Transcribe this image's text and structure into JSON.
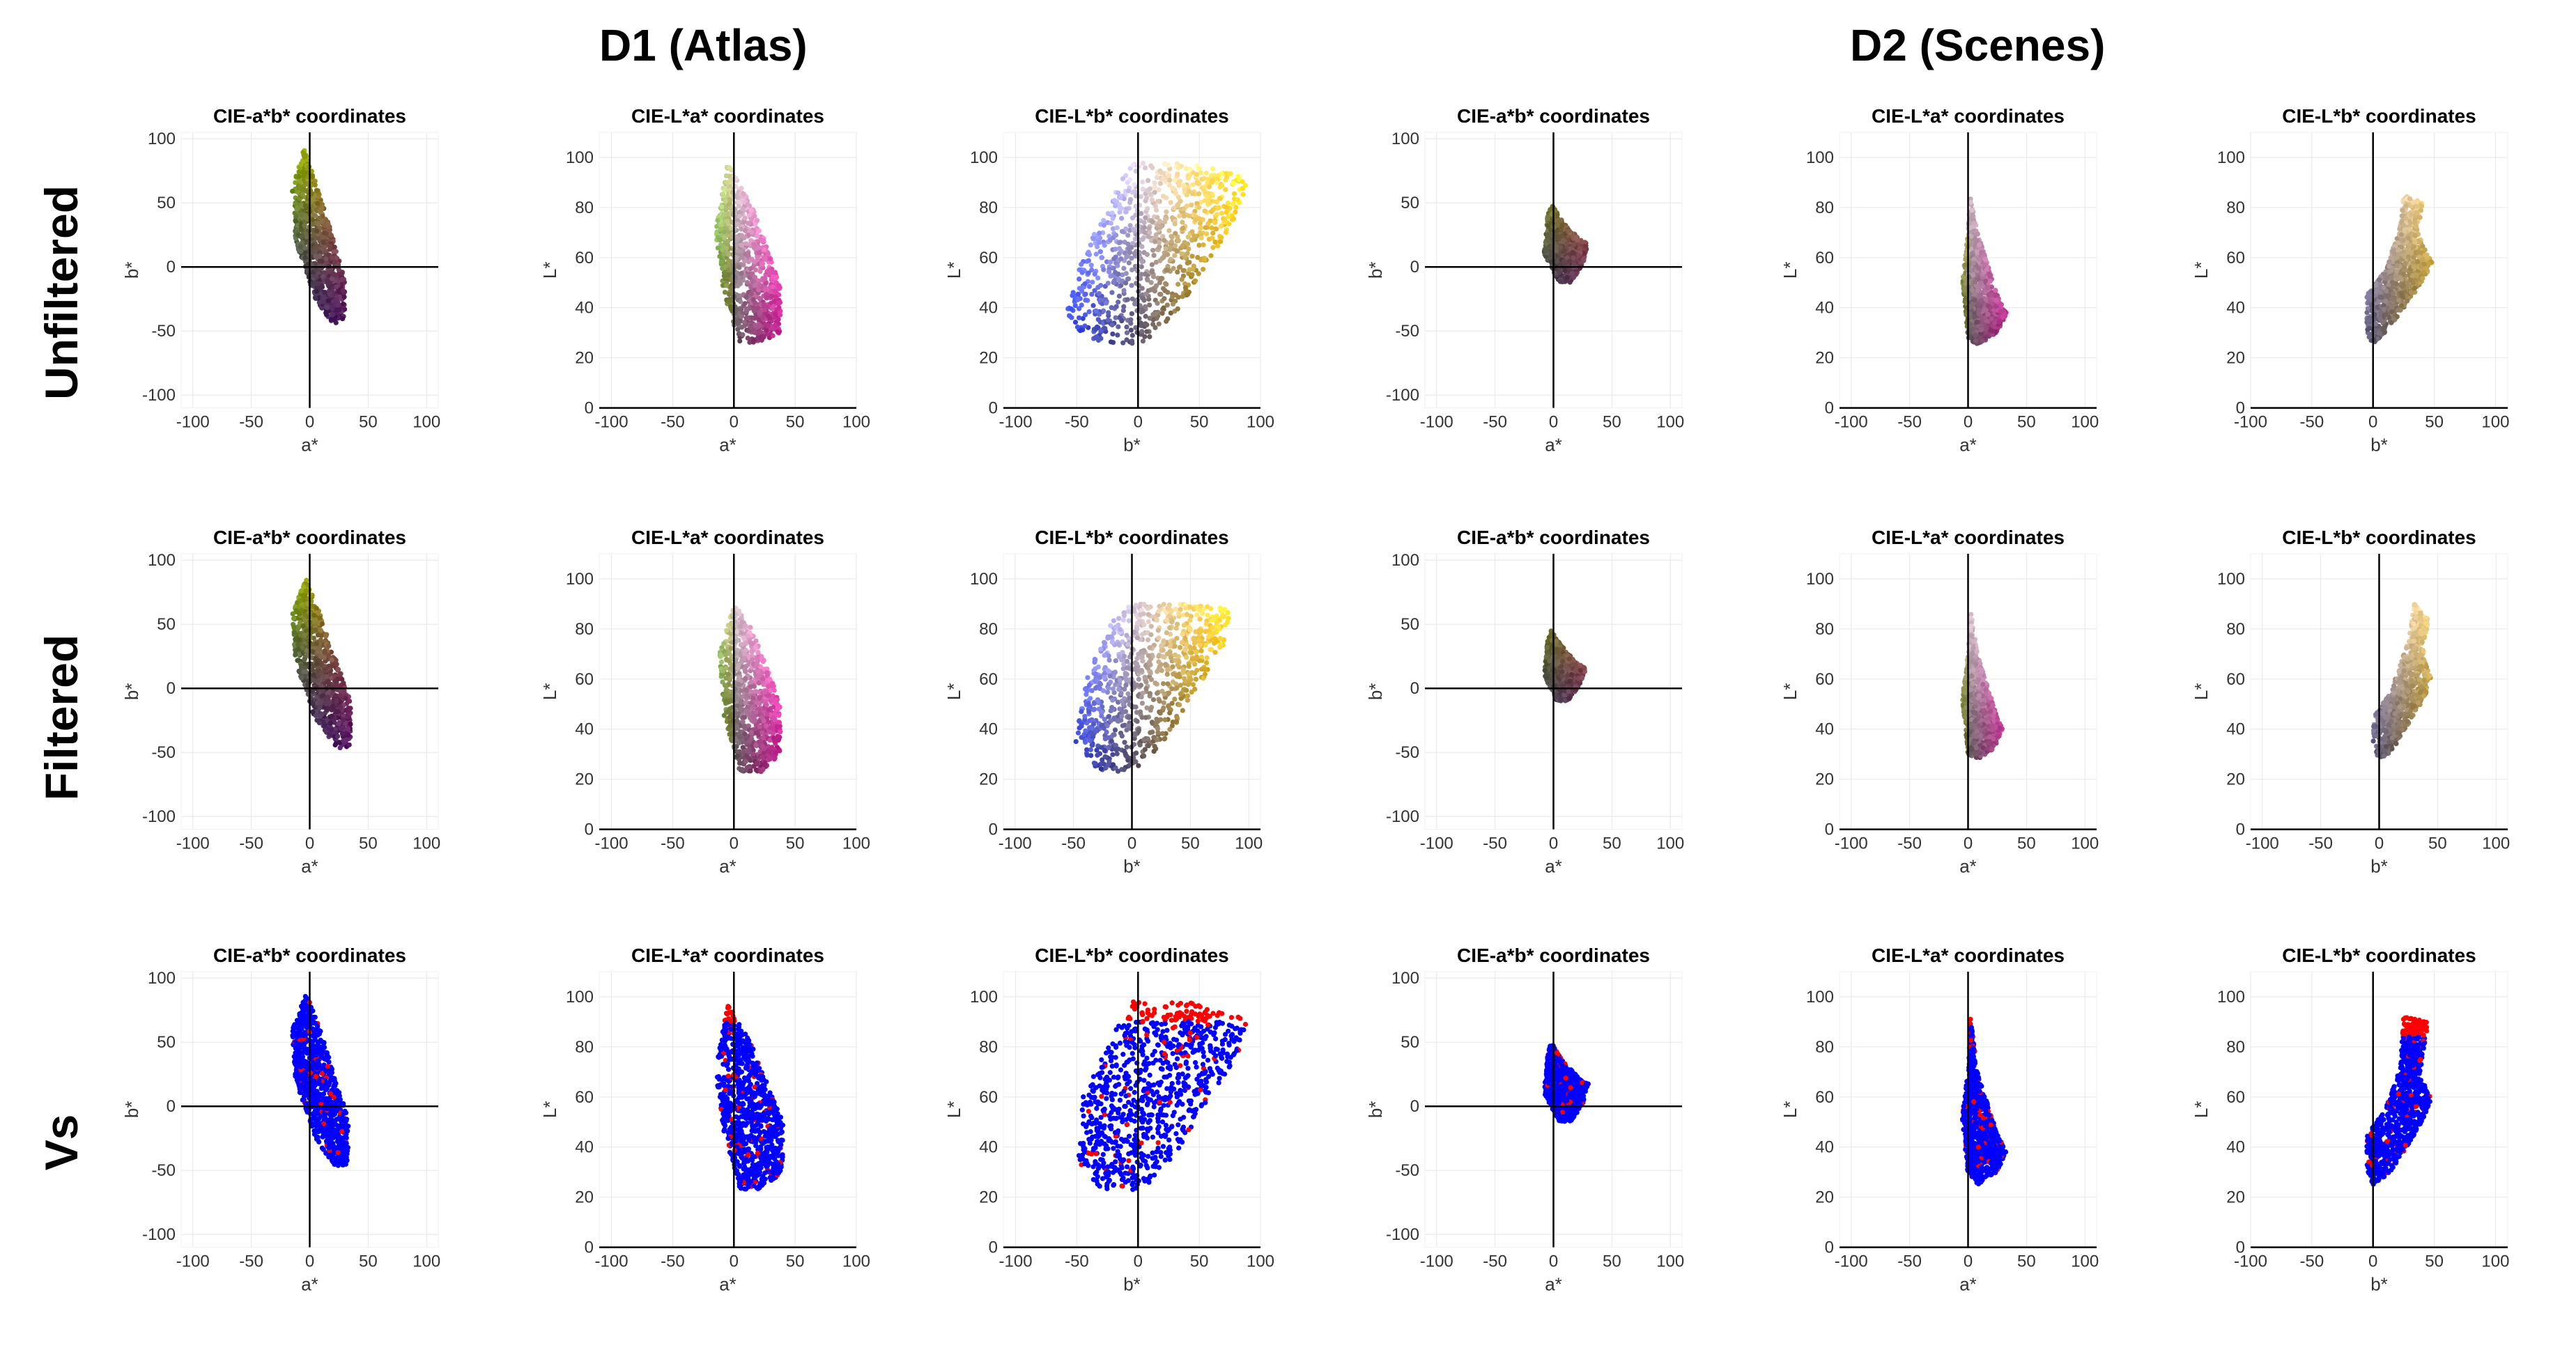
{
  "figure": {
    "group_titles": [
      "D1 (Atlas)",
      "D2 (Scenes)"
    ],
    "row_labels": [
      "Unfiltered",
      "Filtered",
      "Vs"
    ]
  },
  "colors": {
    "filtered": "#0000ff",
    "unfiltered": "#ff0000",
    "axis": "#000000",
    "grid": "#e6e6e6"
  },
  "chart_data": [
    {
      "dataset": "D1 (Atlas)",
      "row": "Unfiltered",
      "type": "scatter",
      "title": "CIE-a*b* coordinates",
      "xlabel": "a*",
      "ylabel": "b*",
      "xlim": [
        -110,
        110
      ],
      "ylim": [
        -110,
        105
      ],
      "xticks": [
        -100,
        -50,
        0,
        50,
        100
      ],
      "yticks": [
        -100,
        -50,
        0,
        50,
        100
      ],
      "region": [
        [
          -5,
          92
        ],
        [
          8,
          60
        ],
        [
          30,
          -10
        ],
        [
          30,
          -40
        ],
        [
          20,
          -45
        ],
        [
          5,
          -25
        ],
        [
          -12,
          20
        ],
        [
          -15,
          60
        ]
      ],
      "palette": "ab"
    },
    {
      "dataset": "D1 (Atlas)",
      "row": "Unfiltered",
      "type": "scatter",
      "title": "CIE-L*a* coordinates",
      "xlabel": "a*",
      "ylabel": "L*",
      "xlim": [
        -110,
        100
      ],
      "ylim": [
        0,
        110
      ],
      "xticks": [
        -100,
        -50,
        0,
        50,
        100
      ],
      "yticks": [
        0,
        20,
        40,
        60,
        80,
        100
      ],
      "region": [
        [
          -5,
          98
        ],
        [
          15,
          80
        ],
        [
          38,
          50
        ],
        [
          38,
          30
        ],
        [
          22,
          26
        ],
        [
          5,
          26
        ],
        [
          -8,
          45
        ],
        [
          -15,
          70
        ]
      ],
      "palette": "La"
    },
    {
      "dataset": "D1 (Atlas)",
      "row": "Unfiltered",
      "type": "scatter",
      "title": "CIE-L*b* coordinates",
      "xlabel": "b*",
      "ylabel": "L*",
      "xlim": [
        -110,
        100
      ],
      "ylim": [
        0,
        110
      ],
      "xticks": [
        -100,
        -50,
        0,
        50,
        100
      ],
      "yticks": [
        0,
        20,
        40,
        60,
        80,
        100
      ],
      "region": [
        [
          -5,
          98
        ],
        [
          40,
          98
        ],
        [
          90,
          92
        ],
        [
          82,
          78
        ],
        [
          35,
          40
        ],
        [
          5,
          26
        ],
        [
          -30,
          25
        ],
        [
          -60,
          35
        ],
        [
          -45,
          60
        ],
        [
          -20,
          85
        ]
      ],
      "palette": "Lb"
    },
    {
      "dataset": "D2 (Scenes)",
      "row": "Unfiltered",
      "type": "scatter",
      "title": "CIE-a*b* coordinates",
      "xlabel": "a*",
      "ylabel": "b*",
      "xlim": [
        -110,
        110
      ],
      "ylim": [
        -110,
        105
      ],
      "xticks": [
        -100,
        -50,
        0,
        50,
        100
      ],
      "yticks": [
        -100,
        -50,
        0,
        50,
        100
      ],
      "region": [
        [
          -2,
          50
        ],
        [
          8,
          35
        ],
        [
          22,
          22
        ],
        [
          30,
          18
        ],
        [
          25,
          2
        ],
        [
          15,
          -12
        ],
        [
          5,
          -12
        ],
        [
          -8,
          10
        ],
        [
          -5,
          40
        ]
      ],
      "palette": "ab"
    },
    {
      "dataset": "D2 (Scenes)",
      "row": "Unfiltered",
      "type": "scatter",
      "title": "CIE-L*a* coordinates",
      "xlabel": "a*",
      "ylabel": "L*",
      "xlim": [
        -110,
        110
      ],
      "ylim": [
        0,
        110
      ],
      "xticks": [
        -100,
        -50,
        0,
        50,
        100
      ],
      "yticks": [
        0,
        20,
        40,
        60,
        80,
        100
      ],
      "region": [
        [
          2,
          85
        ],
        [
          8,
          70
        ],
        [
          25,
          45
        ],
        [
          33,
          38
        ],
        [
          25,
          30
        ],
        [
          8,
          25
        ],
        [
          0,
          28
        ],
        [
          -5,
          52
        ],
        [
          0,
          70
        ]
      ],
      "palette": "La"
    },
    {
      "dataset": "D2 (Scenes)",
      "row": "Unfiltered",
      "type": "scatter",
      "title": "CIE-L*b* coordinates",
      "xlabel": "b*",
      "ylabel": "L*",
      "xlim": [
        -100,
        110
      ],
      "ylim": [
        0,
        110
      ],
      "xticks": [
        -100,
        -50,
        0,
        50,
        100
      ],
      "yticks": [
        0,
        20,
        40,
        60,
        80,
        100
      ],
      "region": [
        [
          25,
          85
        ],
        [
          40,
          82
        ],
        [
          38,
          68
        ],
        [
          48,
          58
        ],
        [
          40,
          50
        ],
        [
          15,
          33
        ],
        [
          0,
          25
        ],
        [
          -5,
          30
        ],
        [
          -5,
          45
        ],
        [
          10,
          55
        ],
        [
          22,
          72
        ]
      ],
      "palette": "Lb"
    },
    {
      "dataset": "D1 (Atlas)",
      "row": "Filtered",
      "type": "scatter",
      "title": "CIE-a*b* coordinates",
      "xlabel": "a*",
      "ylabel": "b*",
      "xlim": [
        -110,
        110
      ],
      "ylim": [
        -110,
        105
      ],
      "xticks": [
        -100,
        -50,
        0,
        50,
        100
      ],
      "yticks": [
        -100,
        -50,
        0,
        50,
        100
      ],
      "region": [
        [
          -3,
          85
        ],
        [
          8,
          60
        ],
        [
          35,
          -10
        ],
        [
          35,
          -45
        ],
        [
          25,
          -48
        ],
        [
          5,
          -25
        ],
        [
          -12,
          20
        ],
        [
          -15,
          60
        ]
      ],
      "palette": "ab"
    },
    {
      "dataset": "D1 (Atlas)",
      "row": "Filtered",
      "type": "scatter",
      "title": "CIE-L*a* coordinates",
      "xlabel": "a*",
      "ylabel": "L*",
      "xlim": [
        -110,
        100
      ],
      "ylim": [
        0,
        110
      ],
      "xticks": [
        -100,
        -50,
        0,
        50,
        100
      ],
      "yticks": [
        0,
        20,
        40,
        60,
        80,
        100
      ],
      "region": [
        [
          0,
          90
        ],
        [
          15,
          80
        ],
        [
          38,
          50
        ],
        [
          38,
          30
        ],
        [
          22,
          23
        ],
        [
          5,
          23
        ],
        [
          -8,
          45
        ],
        [
          -12,
          70
        ]
      ],
      "palette": "La"
    },
    {
      "dataset": "D1 (Atlas)",
      "row": "Filtered",
      "type": "scatter",
      "title": "CIE-L*b* coordinates",
      "xlabel": "b*",
      "ylabel": "L*",
      "xlim": [
        -110,
        110
      ],
      "ylim": [
        0,
        110
      ],
      "xticks": [
        -100,
        -50,
        0,
        50,
        100
      ],
      "yticks": [
        0,
        20,
        40,
        60,
        80,
        100
      ],
      "region": [
        [
          0,
          90
        ],
        [
          40,
          90
        ],
        [
          85,
          88
        ],
        [
          80,
          75
        ],
        [
          35,
          40
        ],
        [
          5,
          23
        ],
        [
          -30,
          23
        ],
        [
          -48,
          35
        ],
        [
          -40,
          60
        ],
        [
          -15,
          85
        ]
      ],
      "palette": "Lb"
    },
    {
      "dataset": "D2 (Scenes)",
      "row": "Filtered",
      "type": "scatter",
      "title": "CIE-a*b* coordinates",
      "xlabel": "a*",
      "ylabel": "b*",
      "xlim": [
        -110,
        110
      ],
      "ylim": [
        -110,
        105
      ],
      "xticks": [
        -100,
        -50,
        0,
        50,
        100
      ],
      "yticks": [
        -100,
        -50,
        0,
        50,
        100
      ],
      "region": [
        [
          -2,
          45
        ],
        [
          8,
          32
        ],
        [
          20,
          20
        ],
        [
          28,
          15
        ],
        [
          22,
          2
        ],
        [
          12,
          -10
        ],
        [
          3,
          -10
        ],
        [
          -8,
          10
        ],
        [
          -5,
          38
        ]
      ],
      "palette": "ab"
    },
    {
      "dataset": "D2 (Scenes)",
      "row": "Filtered",
      "type": "scatter",
      "title": "CIE-L*a* coordinates",
      "xlabel": "a*",
      "ylabel": "L*",
      "xlim": [
        -110,
        110
      ],
      "ylim": [
        0,
        110
      ],
      "xticks": [
        -100,
        -50,
        0,
        50,
        100
      ],
      "yticks": [
        0,
        20,
        40,
        60,
        80,
        100
      ],
      "region": [
        [
          2,
          88
        ],
        [
          8,
          70
        ],
        [
          25,
          45
        ],
        [
          30,
          40
        ],
        [
          22,
          32
        ],
        [
          8,
          28
        ],
        [
          0,
          30
        ],
        [
          -5,
          52
        ],
        [
          0,
          70
        ]
      ],
      "palette": "La"
    },
    {
      "dataset": "D2 (Scenes)",
      "row": "Filtered",
      "type": "scatter",
      "title": "CIE-L*b* coordinates",
      "xlabel": "b*",
      "ylabel": "L*",
      "xlim": [
        -110,
        110
      ],
      "ylim": [
        0,
        110
      ],
      "xticks": [
        -100,
        -50,
        0,
        50,
        100
      ],
      "yticks": [
        0,
        20,
        40,
        60,
        80,
        100
      ],
      "region": [
        [
          30,
          90
        ],
        [
          42,
          85
        ],
        [
          38,
          68
        ],
        [
          45,
          60
        ],
        [
          38,
          52
        ],
        [
          12,
          32
        ],
        [
          0,
          27
        ],
        [
          -5,
          35
        ],
        [
          -5,
          45
        ],
        [
          10,
          55
        ],
        [
          25,
          75
        ]
      ],
      "palette": "Lb"
    },
    {
      "dataset": "D1 (Atlas)",
      "row": "Vs",
      "type": "scatter",
      "title": "CIE-a*b* coordinates",
      "xlabel": "a*",
      "ylabel": "b*",
      "xlim": [
        -110,
        110
      ],
      "ylim": [
        -110,
        105
      ],
      "xticks": [
        -100,
        -50,
        0,
        50,
        100
      ],
      "yticks": [
        -100,
        -50,
        0,
        50,
        100
      ],
      "region": [
        [
          -3,
          88
        ],
        [
          8,
          62
        ],
        [
          33,
          -10
        ],
        [
          33,
          -45
        ],
        [
          22,
          -48
        ],
        [
          5,
          -25
        ],
        [
          -12,
          20
        ],
        [
          -15,
          60
        ]
      ],
      "palette": "vs",
      "series": [
        "unfiltered",
        "filtered"
      ]
    },
    {
      "dataset": "D1 (Atlas)",
      "row": "Vs",
      "type": "scatter",
      "title": "CIE-L*a* coordinates",
      "xlabel": "a*",
      "ylabel": "L*",
      "xlim": [
        -110,
        100
      ],
      "ylim": [
        0,
        110
      ],
      "xticks": [
        -100,
        -50,
        0,
        50,
        100
      ],
      "yticks": [
        0,
        20,
        40,
        60,
        80,
        100
      ],
      "region": [
        [
          -5,
          98
        ],
        [
          15,
          80
        ],
        [
          40,
          50
        ],
        [
          40,
          30
        ],
        [
          22,
          23
        ],
        [
          5,
          23
        ],
        [
          -8,
          45
        ],
        [
          -15,
          70
        ]
      ],
      "palette": "vs",
      "cut": 90,
      "series": [
        "unfiltered",
        "filtered"
      ]
    },
    {
      "dataset": "D1 (Atlas)",
      "row": "Vs",
      "type": "scatter",
      "title": "CIE-L*b* coordinates",
      "xlabel": "b*",
      "ylabel": "L*",
      "xlim": [
        -110,
        100
      ],
      "ylim": [
        0,
        110
      ],
      "xticks": [
        -100,
        -50,
        0,
        50,
        100
      ],
      "yticks": [
        0,
        20,
        40,
        60,
        80,
        100
      ],
      "region": [
        [
          -5,
          98
        ],
        [
          40,
          98
        ],
        [
          90,
          92
        ],
        [
          82,
          78
        ],
        [
          35,
          40
        ],
        [
          5,
          23
        ],
        [
          -30,
          23
        ],
        [
          -50,
          35
        ],
        [
          -45,
          60
        ],
        [
          -20,
          85
        ]
      ],
      "palette": "vs",
      "cut": 90,
      "series": [
        "unfiltered",
        "filtered"
      ]
    },
    {
      "dataset": "D2 (Scenes)",
      "row": "Vs",
      "type": "scatter",
      "title": "CIE-a*b* coordinates",
      "xlabel": "a*",
      "ylabel": "b*",
      "xlim": [
        -110,
        110
      ],
      "ylim": [
        -110,
        105
      ],
      "xticks": [
        -100,
        -50,
        0,
        50,
        100
      ],
      "yticks": [
        -100,
        -50,
        0,
        50,
        100
      ],
      "region": [
        [
          -2,
          50
        ],
        [
          8,
          35
        ],
        [
          22,
          22
        ],
        [
          30,
          18
        ],
        [
          25,
          2
        ],
        [
          15,
          -12
        ],
        [
          5,
          -12
        ],
        [
          -8,
          10
        ],
        [
          -5,
          40
        ]
      ],
      "palette": "vs",
      "series": [
        "unfiltered",
        "filtered"
      ]
    },
    {
      "dataset": "D2 (Scenes)",
      "row": "Vs",
      "type": "scatter",
      "title": "CIE-L*a* coordinates",
      "xlabel": "a*",
      "ylabel": "L*",
      "xlim": [
        -110,
        110
      ],
      "ylim": [
        0,
        110
      ],
      "xticks": [
        -100,
        -50,
        0,
        50,
        100
      ],
      "yticks": [
        0,
        20,
        40,
        60,
        80,
        100
      ],
      "region": [
        [
          2,
          92
        ],
        [
          8,
          70
        ],
        [
          25,
          45
        ],
        [
          33,
          38
        ],
        [
          25,
          30
        ],
        [
          8,
          25
        ],
        [
          0,
          28
        ],
        [
          -5,
          52
        ],
        [
          0,
          70
        ]
      ],
      "palette": "vs",
      "cut": 88,
      "series": [
        "unfiltered",
        "filtered"
      ]
    },
    {
      "dataset": "D2 (Scenes)",
      "row": "Vs",
      "type": "scatter",
      "title": "CIE-L*b* coordinates",
      "xlabel": "b*",
      "ylabel": "L*",
      "xlim": [
        -100,
        110
      ],
      "ylim": [
        0,
        110
      ],
      "xticks": [
        -100,
        -50,
        0,
        50,
        100
      ],
      "yticks": [
        0,
        20,
        40,
        60,
        80,
        100
      ],
      "region": [
        [
          25,
          92
        ],
        [
          45,
          90
        ],
        [
          38,
          68
        ],
        [
          48,
          60
        ],
        [
          40,
          50
        ],
        [
          15,
          30
        ],
        [
          0,
          25
        ],
        [
          -5,
          30
        ],
        [
          -5,
          45
        ],
        [
          10,
          55
        ],
        [
          22,
          72
        ]
      ],
      "palette": "vs",
      "cut": 84,
      "series": [
        "unfiltered",
        "filtered"
      ]
    }
  ]
}
